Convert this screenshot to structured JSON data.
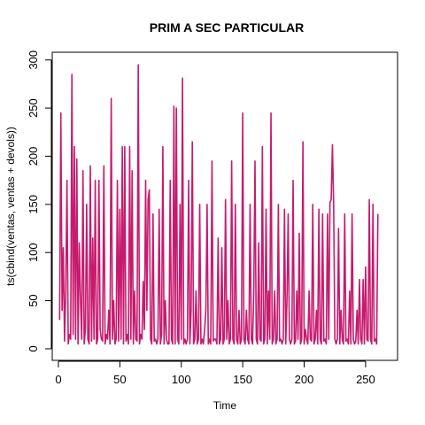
{
  "chart_data": {
    "type": "line",
    "title": "PRIM A SEC PARTICULAR",
    "xlabel": "Time",
    "ylabel": "ts(cbind(ventas, ventas + devols))",
    "xlim": [
      -5,
      276
    ],
    "ylim": [
      -12,
      308
    ],
    "x_ticks": [
      0,
      50,
      100,
      150,
      200,
      250
    ],
    "y_ticks": [
      0,
      50,
      100,
      150,
      200,
      250,
      300
    ],
    "grid": false,
    "legend": "none",
    "series": [
      {
        "color": "#c71a6e",
        "x_start": 1,
        "values": [
          30,
          245,
          40,
          105,
          8,
          60,
          175,
          5,
          15,
          10,
          285,
          15,
          210,
          10,
          197,
          5,
          110,
          50,
          10,
          185,
          5,
          20,
          150,
          10,
          5,
          190,
          8,
          115,
          10,
          175,
          5,
          10,
          175,
          20,
          10,
          8,
          190,
          5,
          15,
          10,
          40,
          5,
          260,
          10,
          50,
          5,
          10,
          175,
          8,
          145,
          10,
          210,
          5,
          210,
          8,
          15,
          5,
          210,
          10,
          185,
          5,
          60,
          10,
          8,
          295,
          5,
          15,
          10,
          70,
          20,
          175,
          40,
          155,
          165,
          10,
          5,
          140,
          8,
          10,
          5,
          10,
          145,
          5,
          15,
          210,
          5,
          50,
          10,
          5,
          5,
          175,
          10,
          5,
          252,
          5,
          250,
          10,
          5,
          150,
          10,
          281,
          5,
          10,
          5,
          10,
          175,
          5,
          40,
          215,
          5,
          10,
          60,
          5,
          10,
          150,
          5,
          10,
          5,
          20,
          40,
          150,
          5,
          10,
          5,
          195,
          8,
          10,
          10,
          5,
          115,
          5,
          10,
          105,
          5,
          10,
          155,
          10,
          50,
          5,
          10,
          195,
          10,
          5,
          150,
          10,
          5,
          40,
          5,
          10,
          245,
          10,
          5,
          40,
          10,
          5,
          150,
          10,
          5,
          60,
          195,
          10,
          5,
          110,
          10,
          8,
          210,
          5,
          10,
          145,
          5,
          60,
          10,
          245,
          5,
          10,
          60,
          5,
          10,
          150,
          8,
          10,
          5,
          10,
          145,
          5,
          50,
          140,
          10,
          5,
          10,
          175,
          5,
          8,
          60,
          10,
          120,
          5,
          10,
          215,
          5,
          20,
          10,
          5,
          60,
          10,
          8,
          150,
          5,
          10,
          40,
          5,
          145,
          10,
          5,
          140,
          8,
          10,
          5,
          140,
          10,
          152,
          155,
          212,
          150,
          10,
          5,
          10,
          125,
          5,
          40,
          10,
          5,
          140,
          8,
          10,
          5,
          60,
          5,
          140,
          10,
          5,
          8,
          40,
          5,
          72,
          10,
          5,
          72,
          5,
          85,
          10,
          8,
          155,
          10,
          5,
          150,
          8,
          10,
          5,
          140
        ]
      }
    ]
  }
}
